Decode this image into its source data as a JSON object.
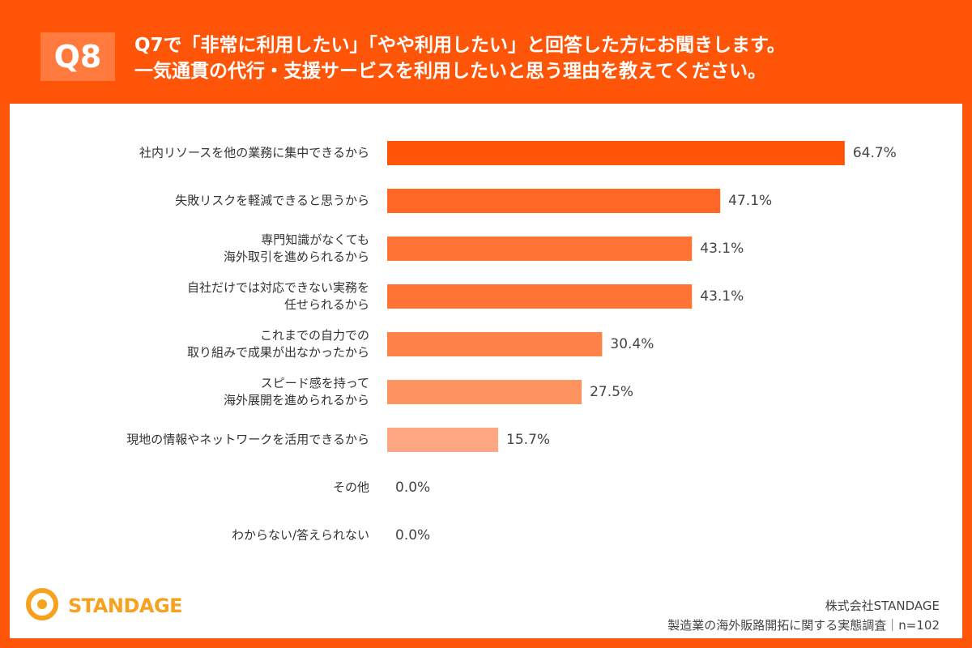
{
  "header": {
    "badge": "Q8",
    "title_lines": [
      "Q7で「非常に利用したい」「やや利用したい」と回答した方にお聞きします。",
      "一気通貫の代行・支援サービスを利用したいと思う理由を教えてください。"
    ]
  },
  "chart_data": {
    "type": "bar",
    "orientation": "horizontal",
    "categories": [
      "社内リソースを他の業務に集中できるから",
      "失敗リスクを軽減できると思うから",
      "専門知識がなくても\n海外取引を進められるから",
      "自社だけでは対応できない実務を\n任せられるから",
      "これまでの自力での\n取り組みで成果が出なかったから",
      "スピード感を持って\n海外展開を進められるから",
      "現地の情報やネットワークを活用できるから",
      "その他",
      "わからない/答えられない"
    ],
    "values": [
      64.7,
      47.1,
      43.1,
      43.1,
      30.4,
      27.5,
      15.7,
      0.0,
      0.0
    ],
    "value_labels": [
      "64.7%",
      "47.1%",
      "43.1%",
      "43.1%",
      "30.4%",
      "27.5%",
      "15.7%",
      "0.0%",
      "0.0%"
    ],
    "colors": [
      "#ff5508",
      "#ff6826",
      "#ff7434",
      "#ff7434",
      "#ff8349",
      "#ff935f",
      "#ffa783",
      "#ffb99c",
      "#ffb99c"
    ]
  },
  "footer": {
    "logo": "STANDAGE",
    "company": "株式会社STANDAGE",
    "survey": "製造業の海外販路開拓に関する実態調査｜n=102"
  }
}
